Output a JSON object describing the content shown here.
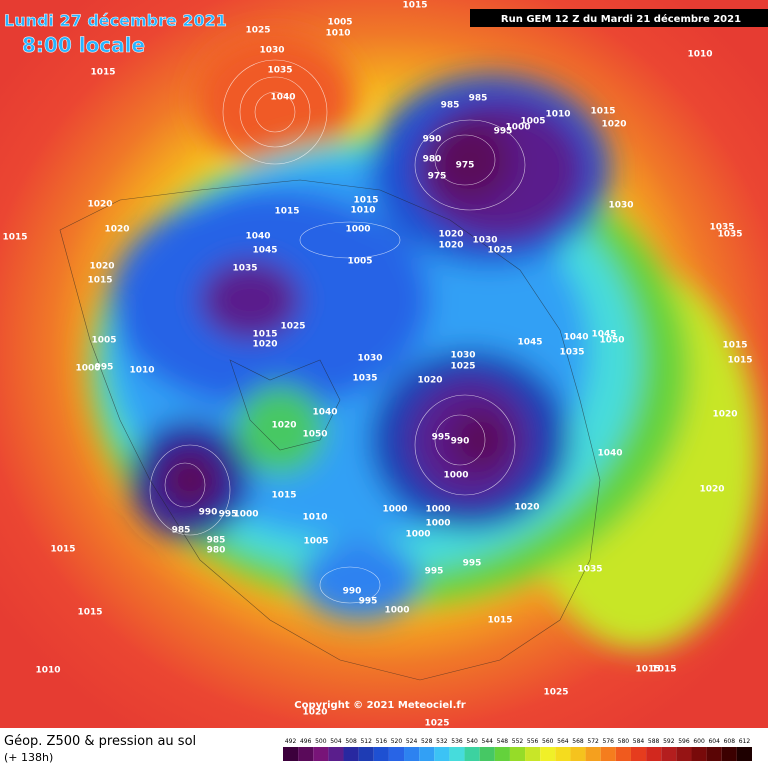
{
  "header": {
    "date": "Lundi 27 décembre 2021",
    "time": "8:00 locale",
    "run": "Run GEM 12 Z du Mardi 21 décembre 2021"
  },
  "copyright": "Copyright © 2021 Meteociel.fr",
  "footer": {
    "title": "Géop. Z500 & pression au sol",
    "lead": "(+ 138h)"
  },
  "pressure_labels": [
    1025,
    1005,
    1010,
    1015,
    1030,
    1035,
    1040,
    1015,
    1010,
    985,
    985,
    1005,
    1010,
    1015,
    1020,
    995,
    1000,
    990,
    980,
    975,
    975,
    1030,
    1020,
    1015,
    1020,
    1015,
    1015,
    1010,
    1000,
    1040,
    1045,
    1035,
    1020,
    1020,
    1030,
    1025,
    1035,
    1035,
    1005,
    1020,
    1015,
    1015,
    1020,
    1025,
    1005,
    1045,
    1040,
    1045,
    1050,
    1035,
    1030,
    1030,
    1025,
    1015,
    1015,
    1000,
    995,
    1010,
    1035,
    1020,
    1040,
    1020,
    1050,
    995,
    990,
    1020,
    1040,
    1000,
    1015,
    1020,
    990,
    995,
    1000,
    1010,
    1000,
    1000,
    1020,
    1000,
    1000,
    985,
    985,
    980,
    1005,
    1015,
    995,
    995,
    1035,
    990,
    995,
    1000,
    1015,
    1015,
    1010,
    1015,
    1015,
    1025,
    1020,
    1025
  ],
  "colorbar": {
    "ticks": [
      492,
      496,
      500,
      504,
      508,
      512,
      516,
      520,
      524,
      528,
      532,
      536,
      540,
      544,
      548,
      552,
      556,
      560,
      564,
      568,
      572,
      576,
      580,
      584,
      588,
      592,
      596,
      600,
      604,
      608,
      612
    ],
    "colors": [
      "#3c003c",
      "#5a0a5a",
      "#781478",
      "#5a1e8c",
      "#2828a0",
      "#1e3cb4",
      "#1e50d2",
      "#2864e6",
      "#2d82f0",
      "#32a0f5",
      "#3cc3f5",
      "#46dcdc",
      "#3cd2a0",
      "#46c864",
      "#64d23c",
      "#96dc28",
      "#c8e628",
      "#f0f028",
      "#f5dc1e",
      "#f5c31e",
      "#f5a01e",
      "#f57d1e",
      "#f05a1e",
      "#e63c1e",
      "#d2281e",
      "#b41e1e",
      "#961414",
      "#780a0a",
      "#5a0505",
      "#3c0000",
      "#1e0000"
    ]
  }
}
